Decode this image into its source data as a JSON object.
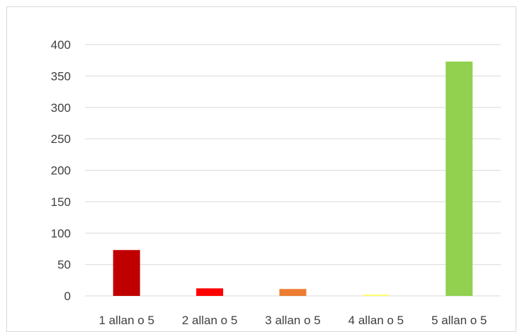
{
  "chart_data": {
    "type": "bar",
    "categories": [
      "1 allan o 5",
      "2 allan o 5",
      "3 allan o 5",
      "4 allan o 5",
      "5 allan o 5"
    ],
    "values": [
      73,
      12,
      11,
      2,
      373
    ],
    "colors": [
      "#c00000",
      "#ff0000",
      "#ed7d31",
      "#ffff66",
      "#92d050"
    ],
    "title": "",
    "xlabel": "",
    "ylabel": "",
    "ylim": [
      0,
      400
    ],
    "yticks": [
      0,
      50,
      100,
      150,
      200,
      250,
      300,
      350,
      400
    ],
    "grid": true,
    "legend": "none"
  }
}
